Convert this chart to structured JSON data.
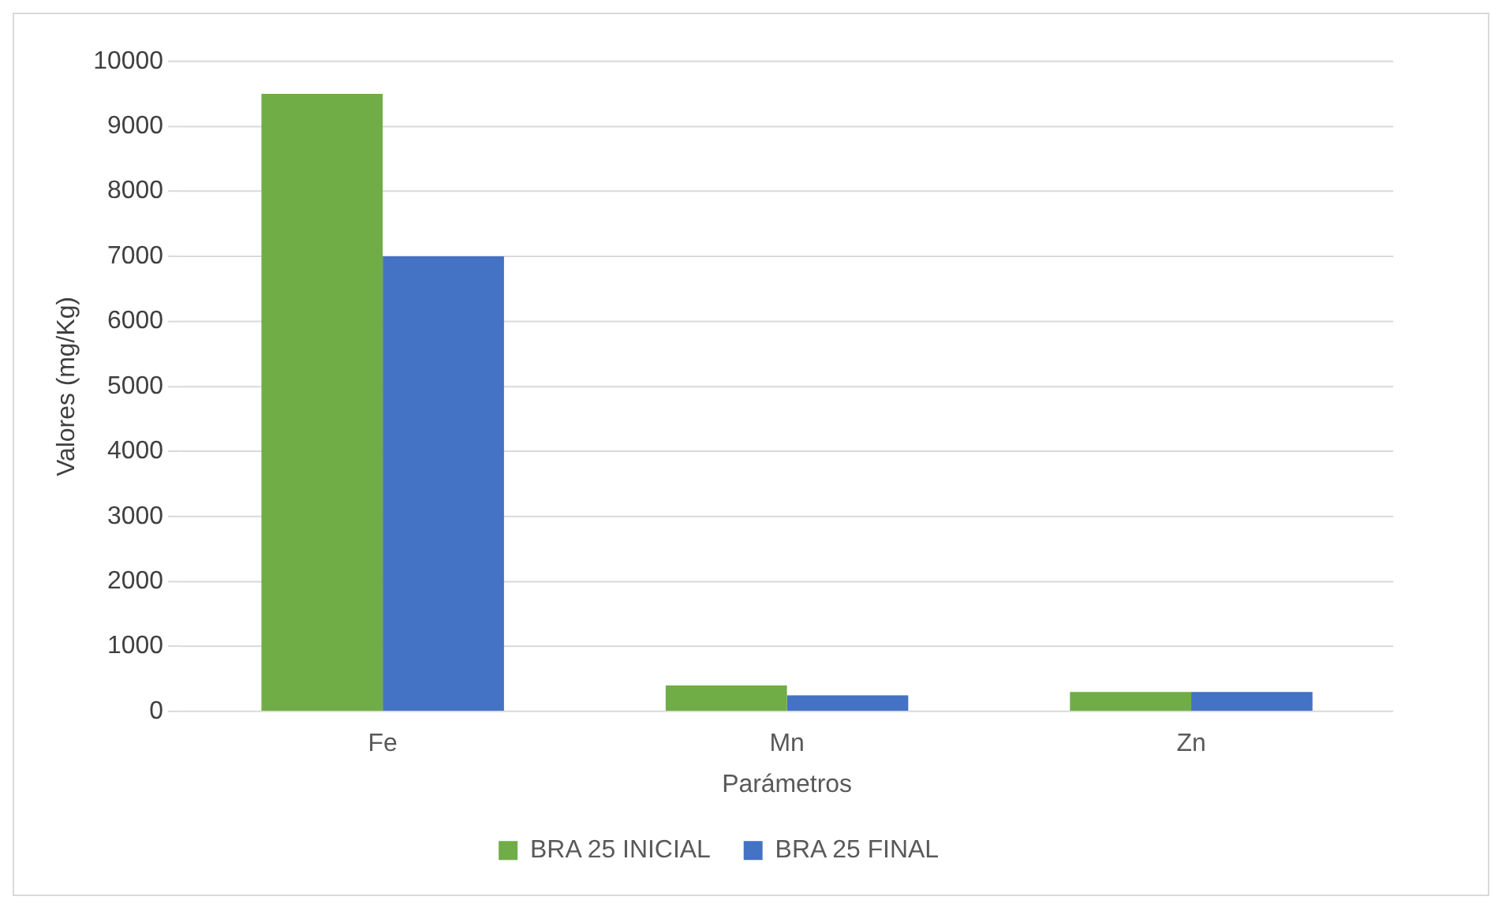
{
  "chart_data": {
    "type": "bar",
    "xlabel": "Parámetros",
    "ylabel": "Valores (mg/Kg)",
    "categories": [
      "Fe",
      "Mn",
      "Zn"
    ],
    "series": [
      {
        "name": "BRA 25 INICIAL",
        "color": "#70ad47",
        "values": [
          9500,
          400,
          300
        ]
      },
      {
        "name": "BRA 25 FINAL",
        "color": "#4472c4",
        "values": [
          7000,
          250,
          300
        ]
      }
    ],
    "ylim": [
      0,
      10000
    ],
    "yticks": [
      0,
      1000,
      2000,
      3000,
      4000,
      5000,
      6000,
      7000,
      8000,
      9000,
      10000
    ],
    "grid": "y",
    "legend": "bottom"
  }
}
